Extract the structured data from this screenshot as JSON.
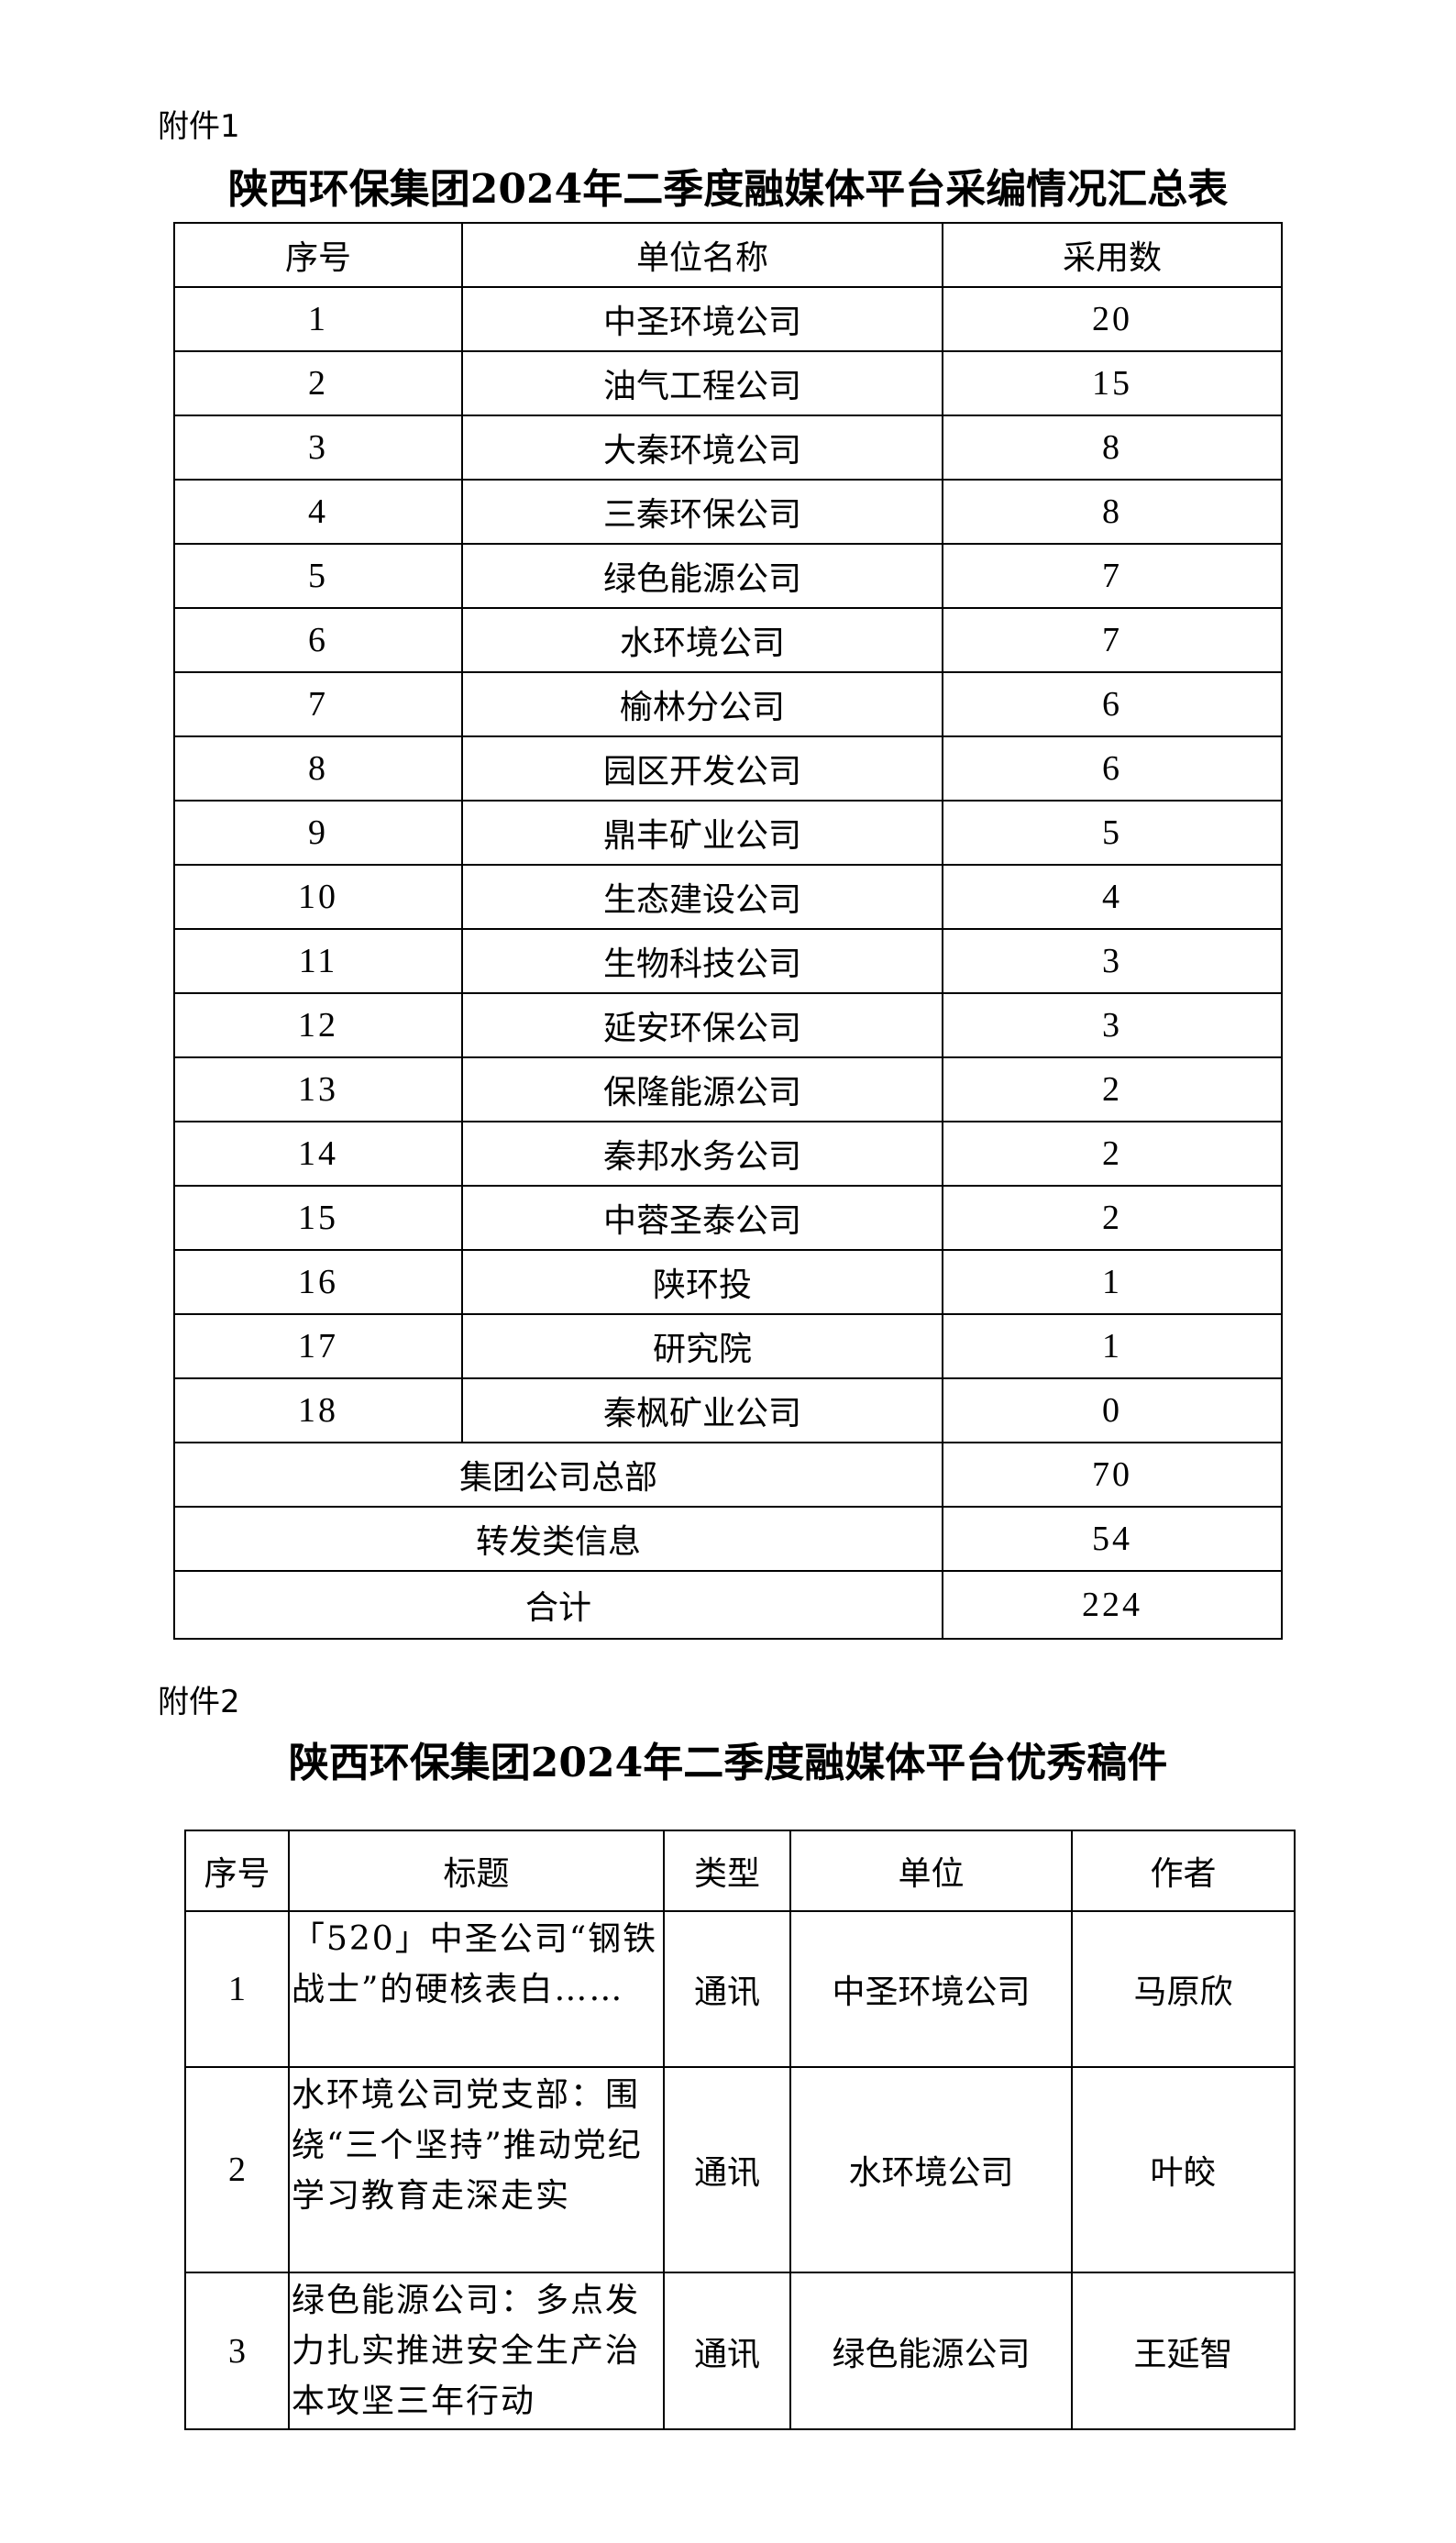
{
  "attachment1": {
    "label": "附件1",
    "title": "陕西环保集团2024年二季度融媒体平台采编情况汇总表",
    "headers": [
      "序号",
      "单位名称",
      "采用数"
    ],
    "rows": [
      {
        "no": "1",
        "unit": "中圣环境公司",
        "count": "20"
      },
      {
        "no": "2",
        "unit": "油气工程公司",
        "count": "15"
      },
      {
        "no": "3",
        "unit": "大秦环境公司",
        "count": "8"
      },
      {
        "no": "4",
        "unit": "三秦环保公司",
        "count": "8"
      },
      {
        "no": "5",
        "unit": "绿色能源公司",
        "count": "7"
      },
      {
        "no": "6",
        "unit": "水环境公司",
        "count": "7"
      },
      {
        "no": "7",
        "unit": "榆林分公司",
        "count": "6"
      },
      {
        "no": "8",
        "unit": "园区开发公司",
        "count": "6"
      },
      {
        "no": "9",
        "unit": "鼎丰矿业公司",
        "count": "5"
      },
      {
        "no": "10",
        "unit": "生态建设公司",
        "count": "4"
      },
      {
        "no": "11",
        "unit": "生物科技公司",
        "count": "3"
      },
      {
        "no": "12",
        "unit": "延安环保公司",
        "count": "3"
      },
      {
        "no": "13",
        "unit": "保隆能源公司",
        "count": "2"
      },
      {
        "no": "14",
        "unit": "秦邦水务公司",
        "count": "2"
      },
      {
        "no": "15",
        "unit": "中蓉圣泰公司",
        "count": "2"
      },
      {
        "no": "16",
        "unit": "陕环投",
        "count": "1"
      },
      {
        "no": "17",
        "unit": "研究院",
        "count": "1"
      },
      {
        "no": "18",
        "unit": "秦枫矿业公司",
        "count": "0"
      }
    ],
    "extra_rows": [
      {
        "unit": "集团公司总部",
        "count": "70"
      },
      {
        "unit": "转发类信息",
        "count": "54"
      }
    ],
    "total": {
      "label": "合计",
      "count": "224"
    }
  },
  "attachment2": {
    "label": "附件2",
    "title": "陕西环保集团2024年二季度融媒体平台优秀稿件",
    "headers": [
      "序号",
      "标题",
      "类型",
      "单位",
      "作者"
    ],
    "rows": [
      {
        "no": "1",
        "title": "「520」中圣公司“钢铁战士”的硬核表白……",
        "type": "通讯",
        "unit": "中圣环境公司",
        "author": "马原欣"
      },
      {
        "no": "2",
        "title": "水环境公司党支部：围绕“三个坚持”推动党纪学习教育走深走实",
        "type": "通讯",
        "unit": "水环境公司",
        "author": "叶皎"
      },
      {
        "no": "3",
        "title": "绿色能源公司：多点发力扎实推进安全生产治本攻坚三年行动",
        "type": "通讯",
        "unit": "绿色能源公司",
        "author": "王延智"
      }
    ]
  }
}
